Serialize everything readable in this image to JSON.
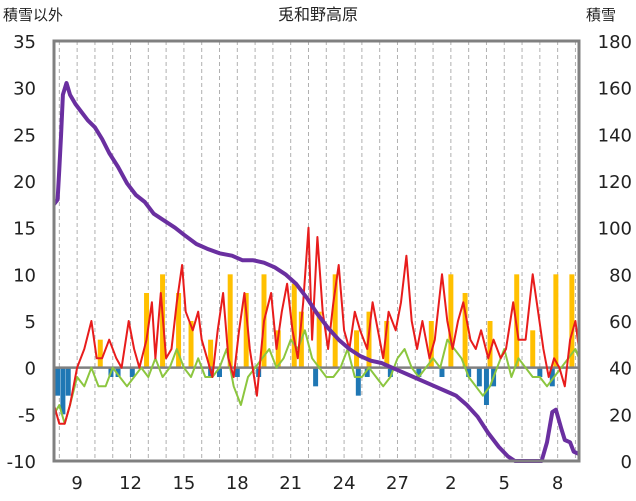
{
  "chart_data": {
    "type": "line",
    "title": "兎和野高原",
    "y_left_label": "積雪以外",
    "y_right_label": "積雪",
    "y_left_ticks": [
      "35",
      "30",
      "25",
      "20",
      "15",
      "10",
      "5",
      "0",
      "-5",
      "-10"
    ],
    "y_right_ticks": [
      "180",
      "160",
      "140",
      "120",
      "100",
      "80",
      "60",
      "40",
      "20",
      "0"
    ],
    "x_tick_labels": [
      "9",
      "12",
      "15",
      "18",
      "21",
      "24",
      "27",
      "2",
      "5",
      "8"
    ],
    "ylim_left": [
      -10,
      35
    ],
    "ylim_right": [
      0,
      180
    ],
    "x_range_days": [
      7.7,
      37.2
    ],
    "x_tick_days": [
      9,
      12,
      15,
      18,
      21,
      24,
      27,
      30,
      33,
      36
    ],
    "grid": "vertical dashed daily",
    "colors": {
      "snow_depth": "#6a2fa0",
      "max_temp": "#e81c1c",
      "min_temp": "#8cc63f",
      "precip": "#ffc000",
      "negative_bars": "#1f77b4",
      "zero_line": "#808080",
      "frame": "#808080"
    },
    "series": [
      {
        "axis": "right",
        "points": [
          [
            7.7,
            110
          ],
          [
            7.9,
            112
          ],
          [
            8.0,
            125
          ],
          [
            8.1,
            140
          ],
          [
            8.2,
            157
          ],
          [
            8.4,
            162
          ],
          [
            8.6,
            157
          ],
          [
            8.9,
            153
          ],
          [
            9.2,
            150
          ],
          [
            9.6,
            146
          ],
          [
            10.0,
            143
          ],
          [
            10.4,
            138
          ],
          [
            10.8,
            132
          ],
          [
            11.3,
            126
          ],
          [
            11.8,
            119
          ],
          [
            12.3,
            114
          ],
          [
            12.8,
            111
          ],
          [
            13.3,
            106
          ],
          [
            13.9,
            103
          ],
          [
            14.5,
            100
          ],
          [
            15.0,
            97
          ],
          [
            15.7,
            93
          ],
          [
            16.3,
            91
          ],
          [
            17.0,
            89
          ],
          [
            17.7,
            88
          ],
          [
            18.3,
            86
          ],
          [
            18.9,
            86
          ],
          [
            19.5,
            85
          ],
          [
            20.1,
            83
          ],
          [
            20.7,
            80
          ],
          [
            21.3,
            76
          ],
          [
            21.9,
            70
          ],
          [
            22.5,
            63
          ],
          [
            23.1,
            57
          ],
          [
            23.7,
            52
          ],
          [
            24.3,
            48
          ],
          [
            24.9,
            45
          ],
          [
            25.5,
            43
          ],
          [
            26.1,
            42
          ],
          [
            26.7,
            40
          ],
          [
            27.3,
            38
          ],
          [
            27.9,
            36
          ],
          [
            28.5,
            34
          ],
          [
            29.1,
            32
          ],
          [
            29.7,
            30
          ],
          [
            30.3,
            28
          ],
          [
            30.9,
            24
          ],
          [
            31.5,
            19
          ],
          [
            32.1,
            12
          ],
          [
            32.7,
            6
          ],
          [
            33.2,
            2
          ],
          [
            33.6,
            0
          ],
          [
            34.4,
            0
          ],
          [
            35.1,
            0
          ],
          [
            35.4,
            8
          ],
          [
            35.7,
            21
          ],
          [
            35.9,
            22
          ],
          [
            36.2,
            14
          ],
          [
            36.4,
            9
          ],
          [
            36.7,
            8
          ],
          [
            36.9,
            4
          ],
          [
            37.2,
            3
          ]
        ]
      },
      {
        "axis": "left",
        "points": [
          [
            7.7,
            -4
          ],
          [
            8.0,
            -6
          ],
          [
            8.3,
            -6
          ],
          [
            8.6,
            -4
          ],
          [
            9.0,
            0
          ],
          [
            9.4,
            2
          ],
          [
            9.8,
            5
          ],
          [
            10.1,
            1
          ],
          [
            10.4,
            1
          ],
          [
            10.8,
            3
          ],
          [
            11.2,
            1
          ],
          [
            11.5,
            0
          ],
          [
            11.9,
            5
          ],
          [
            12.2,
            2
          ],
          [
            12.5,
            0
          ],
          [
            12.9,
            3
          ],
          [
            13.2,
            7
          ],
          [
            13.4,
            1
          ],
          [
            13.7,
            8
          ],
          [
            14.0,
            1
          ],
          [
            14.3,
            2
          ],
          [
            14.6,
            7
          ],
          [
            14.9,
            11
          ],
          [
            15.1,
            6
          ],
          [
            15.5,
            4
          ],
          [
            15.8,
            6
          ],
          [
            16.0,
            3
          ],
          [
            16.3,
            1
          ],
          [
            16.6,
            -1
          ],
          [
            16.9,
            4
          ],
          [
            17.2,
            8
          ],
          [
            17.5,
            1
          ],
          [
            17.8,
            -1
          ],
          [
            18.1,
            4
          ],
          [
            18.4,
            8
          ],
          [
            18.7,
            2
          ],
          [
            19.1,
            -3
          ],
          [
            19.5,
            5
          ],
          [
            19.9,
            8
          ],
          [
            20.2,
            2
          ],
          [
            20.5,
            6
          ],
          [
            20.8,
            9
          ],
          [
            21.1,
            4
          ],
          [
            21.4,
            1
          ],
          [
            21.7,
            7
          ],
          [
            22.0,
            15
          ],
          [
            22.2,
            3
          ],
          [
            22.5,
            14
          ],
          [
            22.8,
            6
          ],
          [
            23.1,
            2
          ],
          [
            23.4,
            7
          ],
          [
            23.7,
            11
          ],
          [
            24.0,
            4
          ],
          [
            24.3,
            2
          ],
          [
            24.6,
            6
          ],
          [
            24.9,
            4
          ],
          [
            25.3,
            2
          ],
          [
            25.6,
            7
          ],
          [
            25.9,
            4
          ],
          [
            26.2,
            1
          ],
          [
            26.5,
            6
          ],
          [
            26.9,
            4
          ],
          [
            27.2,
            7
          ],
          [
            27.5,
            12
          ],
          [
            27.8,
            5
          ],
          [
            28.1,
            2
          ],
          [
            28.4,
            5
          ],
          [
            28.8,
            1
          ],
          [
            29.1,
            3
          ],
          [
            29.5,
            10
          ],
          [
            29.8,
            5
          ],
          [
            30.1,
            2
          ],
          [
            30.4,
            5
          ],
          [
            30.7,
            7
          ],
          [
            31.1,
            3
          ],
          [
            31.4,
            2
          ],
          [
            31.7,
            4
          ],
          [
            32.1,
            1
          ],
          [
            32.4,
            3
          ],
          [
            32.8,
            1
          ],
          [
            33.1,
            2
          ],
          [
            33.5,
            7
          ],
          [
            33.8,
            3
          ],
          [
            34.2,
            3
          ],
          [
            34.6,
            10
          ],
          [
            34.9,
            6
          ],
          [
            35.2,
            2
          ],
          [
            35.5,
            -1
          ],
          [
            35.8,
            1
          ],
          [
            36.1,
            0
          ],
          [
            36.4,
            -2
          ],
          [
            36.7,
            3
          ],
          [
            37.0,
            5
          ],
          [
            37.2,
            2
          ]
        ]
      },
      {
        "axis": "left",
        "points": [
          [
            7.7,
            -5
          ],
          [
            8.0,
            -4
          ],
          [
            8.3,
            -6
          ],
          [
            8.6,
            -4
          ],
          [
            9.0,
            -1
          ],
          [
            9.4,
            -2
          ],
          [
            9.8,
            0
          ],
          [
            10.2,
            -2
          ],
          [
            10.6,
            -2
          ],
          [
            11.0,
            0
          ],
          [
            11.4,
            -1
          ],
          [
            11.8,
            -2
          ],
          [
            12.2,
            -1
          ],
          [
            12.6,
            0
          ],
          [
            13.0,
            -1
          ],
          [
            13.4,
            1
          ],
          [
            13.8,
            -1
          ],
          [
            14.2,
            0
          ],
          [
            14.6,
            2
          ],
          [
            15.0,
            0
          ],
          [
            15.4,
            -1
          ],
          [
            15.8,
            1
          ],
          [
            16.2,
            -1
          ],
          [
            16.6,
            -1
          ],
          [
            17.0,
            0
          ],
          [
            17.4,
            2
          ],
          [
            17.8,
            -2
          ],
          [
            18.2,
            -4
          ],
          [
            18.6,
            -1
          ],
          [
            19.0,
            0
          ],
          [
            19.4,
            1
          ],
          [
            19.8,
            2
          ],
          [
            20.2,
            0
          ],
          [
            20.6,
            1
          ],
          [
            21.0,
            3
          ],
          [
            21.4,
            2
          ],
          [
            21.8,
            4
          ],
          [
            22.2,
            1
          ],
          [
            22.6,
            0
          ],
          [
            23.0,
            -1
          ],
          [
            23.4,
            -1
          ],
          [
            23.8,
            0
          ],
          [
            24.2,
            2
          ],
          [
            24.6,
            -1
          ],
          [
            25.0,
            -1
          ],
          [
            25.4,
            0
          ],
          [
            25.8,
            -1
          ],
          [
            26.2,
            -2
          ],
          [
            26.6,
            -1
          ],
          [
            27.0,
            1
          ],
          [
            27.4,
            2
          ],
          [
            27.8,
            0
          ],
          [
            28.2,
            -1
          ],
          [
            28.6,
            0
          ],
          [
            29.0,
            1
          ],
          [
            29.4,
            0
          ],
          [
            29.8,
            3
          ],
          [
            30.2,
            2
          ],
          [
            30.6,
            1
          ],
          [
            31.0,
            -1
          ],
          [
            31.4,
            -2
          ],
          [
            31.8,
            -3
          ],
          [
            32.2,
            -2
          ],
          [
            32.6,
            0
          ],
          [
            33.0,
            2
          ],
          [
            33.4,
            -1
          ],
          [
            33.8,
            1
          ],
          [
            34.2,
            0
          ],
          [
            34.6,
            -1
          ],
          [
            35.0,
            -1
          ],
          [
            35.4,
            -2
          ],
          [
            35.8,
            -1
          ],
          [
            36.2,
            0
          ],
          [
            36.6,
            1
          ],
          [
            37.0,
            2
          ],
          [
            37.2,
            1
          ]
        ]
      },
      {
        "axis": "left",
        "baseline": 0,
        "points": [
          [
            10.3,
            3
          ],
          [
            12.9,
            8
          ],
          [
            13.8,
            10
          ],
          [
            14.7,
            8
          ],
          [
            15.4,
            5
          ],
          [
            16.5,
            3
          ],
          [
            17.6,
            10
          ],
          [
            18.5,
            8
          ],
          [
            19.5,
            10
          ],
          [
            20.3,
            4
          ],
          [
            21.2,
            9
          ],
          [
            21.6,
            6
          ],
          [
            22.6,
            6
          ],
          [
            23.5,
            10
          ],
          [
            24.7,
            4
          ],
          [
            25.4,
            6
          ],
          [
            26.4,
            5
          ],
          [
            28.9,
            5
          ],
          [
            30.0,
            10
          ],
          [
            30.8,
            8
          ],
          [
            32.2,
            5
          ],
          [
            33.7,
            10
          ],
          [
            34.6,
            4
          ],
          [
            35.9,
            10
          ],
          [
            36.8,
            10
          ]
        ]
      },
      {
        "axis": "left",
        "baseline": 0,
        "points": [
          [
            7.9,
            -3
          ],
          [
            8.2,
            -5
          ],
          [
            8.5,
            -3
          ],
          [
            10.9,
            -1
          ],
          [
            11.3,
            -1
          ],
          [
            12.1,
            -1
          ],
          [
            16.5,
            -1
          ],
          [
            17.0,
            -1
          ],
          [
            18.0,
            -1
          ],
          [
            19.2,
            -1
          ],
          [
            22.4,
            -2
          ],
          [
            24.8,
            -3
          ],
          [
            25.3,
            -1
          ],
          [
            26.6,
            -1
          ],
          [
            28.2,
            -1
          ],
          [
            29.5,
            -1
          ],
          [
            31.0,
            -1
          ],
          [
            31.6,
            -2
          ],
          [
            32.0,
            -4
          ],
          [
            32.4,
            -2
          ],
          [
            35.0,
            -1
          ],
          [
            35.7,
            -2
          ]
        ]
      }
    ]
  }
}
